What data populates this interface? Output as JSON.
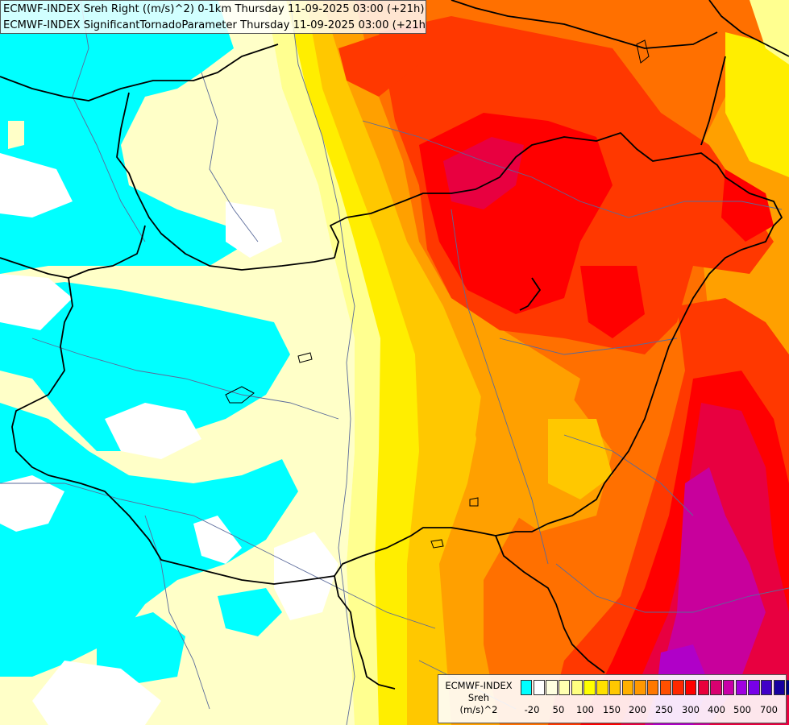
{
  "header": {
    "line1": "ECMWF-INDEX Sreh Right ((m/s)^2) 0-1km Thursday 11-09-2025 03:00 (+21h)",
    "line2": "ECMWF-INDEX SignificantTornadoParameter Thursday 11-09-2025 03:00 (+21h)"
  },
  "legend": {
    "title_lines": [
      "ECMWF-INDEX",
      "Sreh",
      "(m/s)^2"
    ],
    "colors": [
      "#00ffff",
      "#ffffff",
      "#ffffe0",
      "#ffffb0",
      "#ffff80",
      "#ffff00",
      "#ffe000",
      "#ffc800",
      "#ffb000",
      "#ff9800",
      "#ff7800",
      "#ff5000",
      "#ff2800",
      "#ff0000",
      "#e8003c",
      "#d80070",
      "#c800a8",
      "#a000e0",
      "#7800e8",
      "#4000c8",
      "#1800a0",
      "#000080"
    ],
    "tick_labels": [
      "-20",
      "50",
      "100",
      "150",
      "200",
      "250",
      "300",
      "400",
      "500",
      "700"
    ]
  },
  "map_colors": {
    "cyan": "#00ffff",
    "white": "#ffffff",
    "pale_yellow": "#ffffc8",
    "light_yellow": "#ffff90",
    "yellow": "#ffee00",
    "gold": "#ffc800",
    "orange": "#ffa000",
    "dark_orange": "#ff7000",
    "red_orange": "#ff3800",
    "red": "#ff0000",
    "crimson": "#e80040",
    "magenta": "#c8009c",
    "purple": "#b000c8",
    "border_line": "#000000",
    "river_line": "#5a6a9a"
  }
}
